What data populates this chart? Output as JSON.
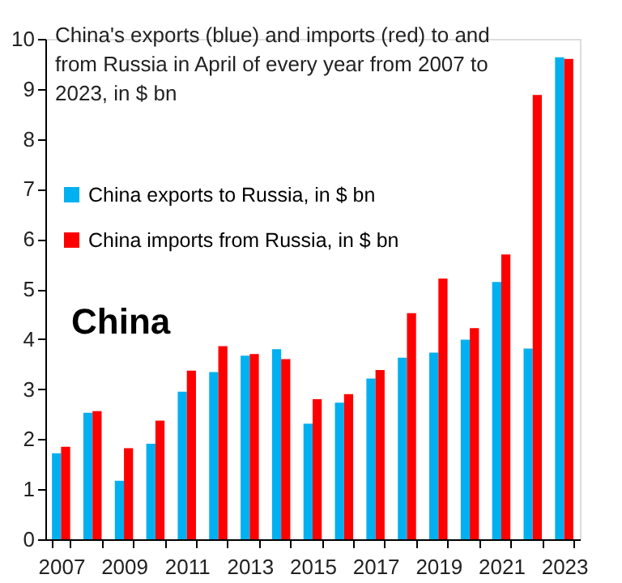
{
  "chart_data": {
    "type": "bar",
    "title": "China's exports (blue) and imports (red) to and\nfrom Russia in April of every year from 2007  to\n2023,  in $ bn",
    "annotations": [
      "China"
    ],
    "categories": [
      "2007",
      null,
      "2009",
      null,
      "2011",
      null,
      "2013",
      null,
      "2015",
      null,
      "2017",
      null,
      "2019",
      null,
      "2021",
      null,
      "2023"
    ],
    "series": [
      {
        "name": "China exports to Russia, in $ bn",
        "color": "#00b0f0",
        "values": [
          1.72,
          2.53,
          1.17,
          1.91,
          2.95,
          3.34,
          3.67,
          3.8,
          2.31,
          2.73,
          3.21,
          3.63,
          3.73,
          3.99,
          5.14,
          3.81,
          9.63
        ]
      },
      {
        "name": "China imports from Russia, in $ bn",
        "color": "#ff0000",
        "values": [
          1.85,
          2.56,
          1.82,
          2.37,
          3.37,
          3.86,
          3.7,
          3.6,
          2.8,
          2.9,
          3.38,
          4.52,
          5.21,
          4.22,
          5.69,
          8.88,
          9.6
        ]
      }
    ],
    "ylim": [
      0,
      10
    ],
    "yticks": [
      0,
      1,
      2,
      3,
      4,
      5,
      6,
      7,
      8,
      9,
      10
    ],
    "grid": false,
    "legend": "top left"
  }
}
